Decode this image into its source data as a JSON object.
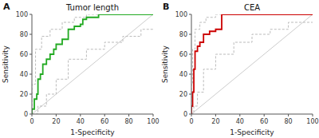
{
  "chart_data": [
    {
      "type": "line",
      "title": "Tumor length",
      "annotations": [
        "A"
      ],
      "xlabel": "1-Specificity",
      "ylabel": "Sensitivity",
      "xlim": [
        0,
        100
      ],
      "ylim": [
        0,
        100
      ],
      "xticks": [
        0,
        20,
        40,
        60,
        80,
        100
      ],
      "yticks": [
        0,
        20,
        40,
        60,
        80,
        100
      ],
      "grid": false,
      "series": [
        {
          "type": "line",
          "color": "#cccccc",
          "line_style": "solid",
          "x": [
            0,
            100
          ],
          "values": [
            0,
            100
          ]
        },
        {
          "type": "step",
          "color": "#bbbbbb",
          "line_style": "dashed",
          "x": [
            0,
            0,
            3,
            3,
            8,
            8,
            15,
            15,
            25,
            25,
            35,
            35,
            45,
            45,
            60,
            60,
            75,
            75,
            90,
            90,
            100
          ],
          "values": [
            0,
            30,
            30,
            65,
            65,
            78,
            78,
            85,
            85,
            92,
            92,
            97,
            97,
            100,
            100,
            100,
            100,
            100,
            100,
            100,
            100
          ]
        },
        {
          "type": "step",
          "color": "#bbbbbb",
          "line_style": "dashed",
          "x": [
            0,
            0,
            5,
            5,
            12,
            12,
            20,
            20,
            30,
            30,
            45,
            45,
            60,
            60,
            75,
            75,
            90,
            90,
            100
          ],
          "values": [
            0,
            0,
            0,
            8,
            8,
            20,
            20,
            35,
            35,
            55,
            55,
            65,
            65,
            72,
            72,
            78,
            78,
            85,
            85
          ]
        },
        {
          "type": "step",
          "color": "#22aa22",
          "line_style": "solid",
          "x": [
            0,
            0,
            2,
            2,
            4,
            4,
            5,
            5,
            7,
            7,
            9,
            9,
            12,
            12,
            15,
            15,
            18,
            18,
            20,
            20,
            25,
            25,
            30,
            30,
            35,
            35,
            40,
            40,
            42,
            42,
            45,
            45,
            55,
            55,
            60,
            60,
            80,
            80,
            85,
            85,
            100
          ],
          "values": [
            0,
            5,
            5,
            15,
            15,
            20,
            20,
            35,
            35,
            40,
            40,
            50,
            50,
            55,
            55,
            60,
            60,
            65,
            65,
            70,
            70,
            75,
            75,
            85,
            85,
            88,
            88,
            90,
            90,
            95,
            95,
            97,
            97,
            100,
            100,
            100,
            100,
            100,
            100,
            100,
            100
          ]
        }
      ]
    },
    {
      "type": "line",
      "title": "CEA",
      "annotations": [
        "B"
      ],
      "xlabel": "1-Specificity",
      "ylabel": "Sensitivity",
      "xlim": [
        0,
        100
      ],
      "ylim": [
        0,
        100
      ],
      "xticks": [
        0,
        20,
        40,
        60,
        80,
        100
      ],
      "yticks": [
        0,
        20,
        40,
        60,
        80,
        100
      ],
      "grid": false,
      "series": [
        {
          "type": "line",
          "color": "#cccccc",
          "line_style": "solid",
          "x": [
            0,
            100
          ],
          "values": [
            0,
            100
          ]
        },
        {
          "type": "step",
          "color": "#bbbbbb",
          "line_style": "dashed",
          "x": [
            0,
            0,
            1,
            1,
            3,
            3,
            7,
            7,
            12,
            12,
            20,
            20,
            30,
            30,
            40,
            40,
            60,
            60,
            100
          ],
          "values": [
            0,
            30,
            30,
            65,
            65,
            85,
            85,
            92,
            92,
            97,
            97,
            100,
            100,
            100,
            100,
            100,
            100,
            100,
            100
          ]
        },
        {
          "type": "step",
          "color": "#bbbbbb",
          "line_style": "dashed",
          "x": [
            0,
            0,
            2,
            2,
            5,
            5,
            10,
            10,
            20,
            20,
            35,
            35,
            50,
            50,
            65,
            65,
            80,
            80,
            100
          ],
          "values": [
            0,
            0,
            0,
            8,
            8,
            22,
            22,
            45,
            45,
            60,
            60,
            72,
            72,
            80,
            80,
            85,
            85,
            92,
            92
          ]
        },
        {
          "type": "step",
          "color": "#cc0000",
          "line_style": "solid",
          "x": [
            0,
            0,
            1,
            1,
            2,
            2,
            3,
            3,
            5,
            5,
            7,
            7,
            10,
            10,
            15,
            15,
            20,
            20,
            25,
            25,
            30,
            30,
            40,
            40,
            60,
            60,
            80,
            80,
            100
          ],
          "values": [
            0,
            8,
            8,
            22,
            22,
            45,
            45,
            63,
            63,
            68,
            68,
            72,
            72,
            80,
            80,
            83,
            83,
            85,
            85,
            100,
            100,
            100,
            100,
            100,
            100,
            100,
            100,
            100,
            100
          ]
        }
      ]
    }
  ]
}
